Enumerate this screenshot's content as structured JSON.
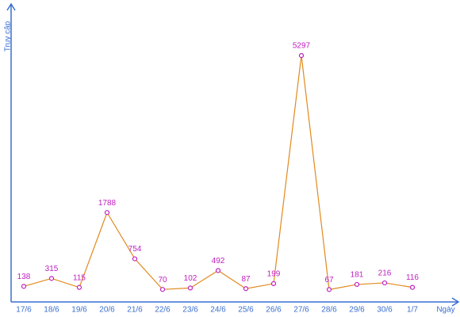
{
  "chart_data": {
    "type": "line",
    "ylabel": "Truy cập",
    "xlabel": "Ngày",
    "categories": [
      "17/6",
      "18/6",
      "19/6",
      "20/6",
      "21/6",
      "22/6",
      "23/6",
      "24/6",
      "25/6",
      "26/6",
      "27/6",
      "28/6",
      "29/6",
      "30/6",
      "1/7"
    ],
    "values": [
      138,
      315,
      115,
      1788,
      754,
      70,
      102,
      492,
      87,
      199,
      5297,
      67,
      181,
      216,
      116
    ],
    "color": "#e08a1e",
    "marker_color": "#c020c0",
    "label_color": "#c020c0",
    "axis_color": "#3a6fd0",
    "ylim": [
      -210,
      6450
    ]
  }
}
